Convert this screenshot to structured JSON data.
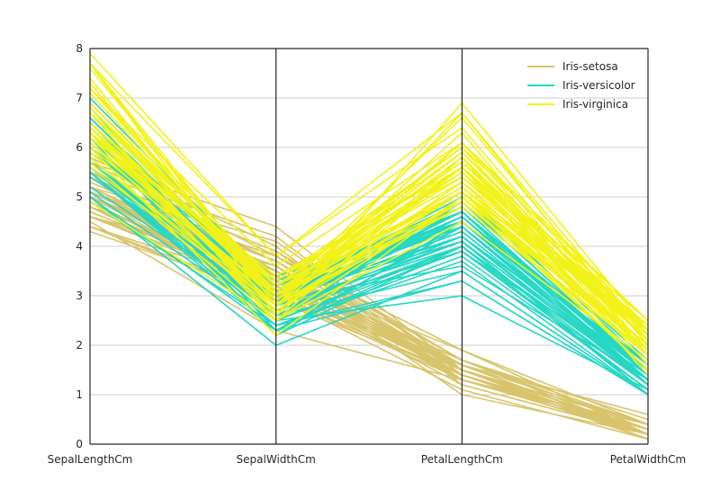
{
  "chart_data": {
    "type": "parallel_coordinates",
    "axes": [
      "SepalLengthCm",
      "SepalWidthCm",
      "PetalLengthCm",
      "PetalWidthCm"
    ],
    "ylim": [
      0,
      8
    ],
    "yticks": [
      0,
      1,
      2,
      3,
      4,
      5,
      6,
      7,
      8
    ],
    "grid": "horizontal",
    "legend_position": "top-right",
    "series": [
      {
        "name": "Iris-setosa",
        "color": "#d8c46b",
        "rows": [
          [
            5.1,
            3.5,
            1.4,
            0.2
          ],
          [
            4.9,
            3.0,
            1.4,
            0.2
          ],
          [
            4.7,
            3.2,
            1.3,
            0.2
          ],
          [
            4.6,
            3.1,
            1.5,
            0.2
          ],
          [
            5.0,
            3.6,
            1.4,
            0.2
          ],
          [
            5.4,
            3.9,
            1.7,
            0.4
          ],
          [
            4.6,
            3.4,
            1.4,
            0.3
          ],
          [
            5.0,
            3.4,
            1.5,
            0.2
          ],
          [
            4.4,
            2.9,
            1.4,
            0.2
          ],
          [
            4.9,
            3.1,
            1.5,
            0.1
          ],
          [
            5.4,
            3.7,
            1.5,
            0.2
          ],
          [
            4.8,
            3.4,
            1.6,
            0.2
          ],
          [
            4.8,
            3.0,
            1.4,
            0.1
          ],
          [
            4.3,
            3.0,
            1.1,
            0.1
          ],
          [
            5.8,
            4.0,
            1.2,
            0.2
          ],
          [
            5.7,
            4.4,
            1.5,
            0.4
          ],
          [
            5.4,
            3.9,
            1.3,
            0.4
          ],
          [
            5.1,
            3.5,
            1.4,
            0.3
          ],
          [
            5.7,
            3.8,
            1.7,
            0.3
          ],
          [
            5.1,
            3.8,
            1.5,
            0.3
          ],
          [
            5.4,
            3.4,
            1.7,
            0.2
          ],
          [
            5.1,
            3.7,
            1.5,
            0.4
          ],
          [
            4.6,
            3.6,
            1.0,
            0.2
          ],
          [
            5.1,
            3.3,
            1.7,
            0.5
          ],
          [
            4.8,
            3.4,
            1.9,
            0.2
          ],
          [
            5.0,
            3.0,
            1.6,
            0.2
          ],
          [
            5.0,
            3.4,
            1.6,
            0.4
          ],
          [
            5.2,
            3.5,
            1.5,
            0.2
          ],
          [
            5.2,
            3.4,
            1.4,
            0.2
          ],
          [
            4.7,
            3.2,
            1.6,
            0.2
          ],
          [
            4.8,
            3.1,
            1.6,
            0.2
          ],
          [
            5.4,
            3.4,
            1.5,
            0.4
          ],
          [
            5.2,
            4.1,
            1.5,
            0.1
          ],
          [
            5.5,
            4.2,
            1.4,
            0.2
          ],
          [
            4.9,
            3.1,
            1.5,
            0.1
          ],
          [
            5.0,
            3.2,
            1.2,
            0.2
          ],
          [
            5.5,
            3.5,
            1.3,
            0.2
          ],
          [
            4.9,
            3.1,
            1.5,
            0.1
          ],
          [
            4.4,
            3.0,
            1.3,
            0.2
          ],
          [
            5.1,
            3.4,
            1.5,
            0.2
          ],
          [
            5.0,
            3.5,
            1.3,
            0.3
          ],
          [
            4.5,
            2.3,
            1.3,
            0.3
          ],
          [
            4.4,
            3.2,
            1.3,
            0.2
          ],
          [
            5.0,
            3.5,
            1.6,
            0.6
          ],
          [
            5.1,
            3.8,
            1.9,
            0.4
          ],
          [
            4.8,
            3.0,
            1.4,
            0.3
          ],
          [
            5.1,
            3.8,
            1.6,
            0.2
          ],
          [
            4.6,
            3.2,
            1.4,
            0.2
          ],
          [
            5.3,
            3.7,
            1.5,
            0.2
          ],
          [
            5.0,
            3.3,
            1.4,
            0.2
          ]
        ]
      },
      {
        "name": "Iris-versicolor",
        "color": "#26d7c4",
        "rows": [
          [
            7.0,
            3.2,
            4.7,
            1.4
          ],
          [
            6.4,
            3.2,
            4.5,
            1.5
          ],
          [
            6.9,
            3.1,
            4.9,
            1.5
          ],
          [
            5.5,
            2.3,
            4.0,
            1.3
          ],
          [
            6.5,
            2.8,
            4.6,
            1.5
          ],
          [
            5.7,
            2.8,
            4.5,
            1.3
          ],
          [
            6.3,
            3.3,
            4.7,
            1.6
          ],
          [
            4.9,
            2.4,
            3.3,
            1.0
          ],
          [
            6.6,
            2.9,
            4.6,
            1.3
          ],
          [
            5.2,
            2.7,
            3.9,
            1.4
          ],
          [
            5.0,
            2.0,
            3.5,
            1.0
          ],
          [
            5.9,
            3.0,
            4.2,
            1.5
          ],
          [
            6.0,
            2.2,
            4.0,
            1.0
          ],
          [
            6.1,
            2.9,
            4.7,
            1.4
          ],
          [
            5.6,
            2.9,
            3.6,
            1.3
          ],
          [
            6.7,
            3.1,
            4.4,
            1.4
          ],
          [
            5.6,
            3.0,
            4.5,
            1.5
          ],
          [
            5.8,
            2.7,
            4.1,
            1.0
          ],
          [
            6.2,
            2.2,
            4.5,
            1.5
          ],
          [
            5.6,
            2.5,
            3.9,
            1.1
          ],
          [
            5.9,
            3.2,
            4.8,
            1.8
          ],
          [
            6.1,
            2.8,
            4.0,
            1.3
          ],
          [
            6.3,
            2.5,
            4.9,
            1.5
          ],
          [
            6.1,
            2.8,
            4.7,
            1.2
          ],
          [
            6.4,
            2.9,
            4.3,
            1.3
          ],
          [
            6.6,
            3.0,
            4.4,
            1.4
          ],
          [
            6.8,
            2.8,
            4.8,
            1.4
          ],
          [
            6.7,
            3.0,
            5.0,
            1.7
          ],
          [
            6.0,
            2.9,
            4.5,
            1.5
          ],
          [
            5.7,
            2.6,
            3.5,
            1.0
          ],
          [
            5.5,
            2.4,
            3.8,
            1.1
          ],
          [
            5.5,
            2.4,
            3.7,
            1.0
          ],
          [
            5.8,
            2.7,
            3.9,
            1.2
          ],
          [
            6.0,
            2.7,
            5.1,
            1.6
          ],
          [
            5.4,
            3.0,
            4.5,
            1.5
          ],
          [
            6.0,
            3.4,
            4.5,
            1.6
          ],
          [
            6.7,
            3.1,
            4.7,
            1.5
          ],
          [
            6.3,
            2.3,
            4.4,
            1.3
          ],
          [
            5.6,
            3.0,
            4.1,
            1.3
          ],
          [
            5.5,
            2.5,
            4.0,
            1.3
          ],
          [
            5.5,
            2.6,
            4.4,
            1.2
          ],
          [
            6.1,
            3.0,
            4.6,
            1.4
          ],
          [
            5.8,
            2.6,
            4.0,
            1.2
          ],
          [
            5.0,
            2.3,
            3.3,
            1.0
          ],
          [
            5.6,
            2.7,
            4.2,
            1.3
          ],
          [
            5.7,
            3.0,
            4.2,
            1.2
          ],
          [
            5.7,
            2.9,
            4.2,
            1.3
          ],
          [
            6.2,
            2.9,
            4.3,
            1.3
          ],
          [
            5.1,
            2.5,
            3.0,
            1.1
          ],
          [
            5.7,
            2.8,
            4.1,
            1.3
          ]
        ]
      },
      {
        "name": "Iris-virginica",
        "color": "#f2f21a",
        "rows": [
          [
            6.3,
            3.3,
            6.0,
            2.5
          ],
          [
            5.8,
            2.7,
            5.1,
            1.9
          ],
          [
            7.1,
            3.0,
            5.9,
            2.1
          ],
          [
            6.3,
            2.9,
            5.6,
            1.8
          ],
          [
            6.5,
            3.0,
            5.8,
            2.2
          ],
          [
            7.6,
            3.0,
            6.6,
            2.1
          ],
          [
            4.9,
            2.5,
            4.5,
            1.7
          ],
          [
            7.3,
            2.9,
            6.3,
            1.8
          ],
          [
            6.7,
            2.5,
            5.8,
            1.8
          ],
          [
            7.2,
            3.6,
            6.1,
            2.5
          ],
          [
            6.5,
            3.2,
            5.1,
            2.0
          ],
          [
            6.4,
            2.7,
            5.3,
            1.9
          ],
          [
            6.8,
            3.0,
            5.5,
            2.1
          ],
          [
            5.7,
            2.5,
            5.0,
            2.0
          ],
          [
            5.8,
            2.8,
            5.1,
            2.4
          ],
          [
            6.4,
            3.2,
            5.3,
            2.3
          ],
          [
            6.5,
            3.0,
            5.5,
            1.8
          ],
          [
            7.7,
            3.8,
            6.7,
            2.2
          ],
          [
            7.7,
            2.6,
            6.9,
            2.3
          ],
          [
            6.0,
            2.2,
            5.0,
            1.5
          ],
          [
            6.9,
            3.2,
            5.7,
            2.3
          ],
          [
            5.6,
            2.8,
            4.9,
            2.0
          ],
          [
            7.7,
            2.8,
            6.7,
            2.0
          ],
          [
            6.3,
            2.7,
            4.9,
            1.8
          ],
          [
            6.7,
            3.3,
            5.7,
            2.1
          ],
          [
            7.2,
            3.2,
            6.0,
            1.8
          ],
          [
            6.2,
            2.8,
            4.8,
            1.8
          ],
          [
            6.1,
            3.0,
            4.9,
            1.8
          ],
          [
            6.4,
            2.8,
            5.6,
            2.1
          ],
          [
            7.2,
            3.0,
            5.8,
            1.6
          ],
          [
            7.4,
            2.8,
            6.1,
            1.9
          ],
          [
            7.9,
            3.8,
            6.4,
            2.0
          ],
          [
            6.4,
            2.8,
            5.6,
            2.2
          ],
          [
            6.3,
            2.8,
            5.1,
            1.5
          ],
          [
            6.1,
            2.6,
            5.6,
            1.4
          ],
          [
            7.7,
            3.0,
            6.1,
            2.3
          ],
          [
            6.3,
            3.4,
            5.6,
            2.4
          ],
          [
            6.4,
            3.1,
            5.5,
            1.8
          ],
          [
            6.0,
            3.0,
            4.8,
            1.8
          ],
          [
            6.9,
            3.1,
            5.4,
            2.1
          ],
          [
            6.7,
            3.1,
            5.6,
            2.4
          ],
          [
            6.9,
            3.1,
            5.1,
            2.3
          ],
          [
            5.8,
            2.7,
            5.1,
            1.9
          ],
          [
            6.8,
            3.2,
            5.9,
            2.3
          ],
          [
            6.7,
            3.3,
            5.7,
            2.5
          ],
          [
            6.7,
            3.0,
            5.2,
            2.3
          ],
          [
            6.3,
            2.5,
            5.0,
            1.9
          ],
          [
            6.5,
            3.0,
            5.2,
            2.0
          ],
          [
            6.2,
            3.4,
            5.4,
            2.3
          ],
          [
            5.9,
            3.0,
            5.1,
            1.8
          ]
        ]
      }
    ]
  }
}
